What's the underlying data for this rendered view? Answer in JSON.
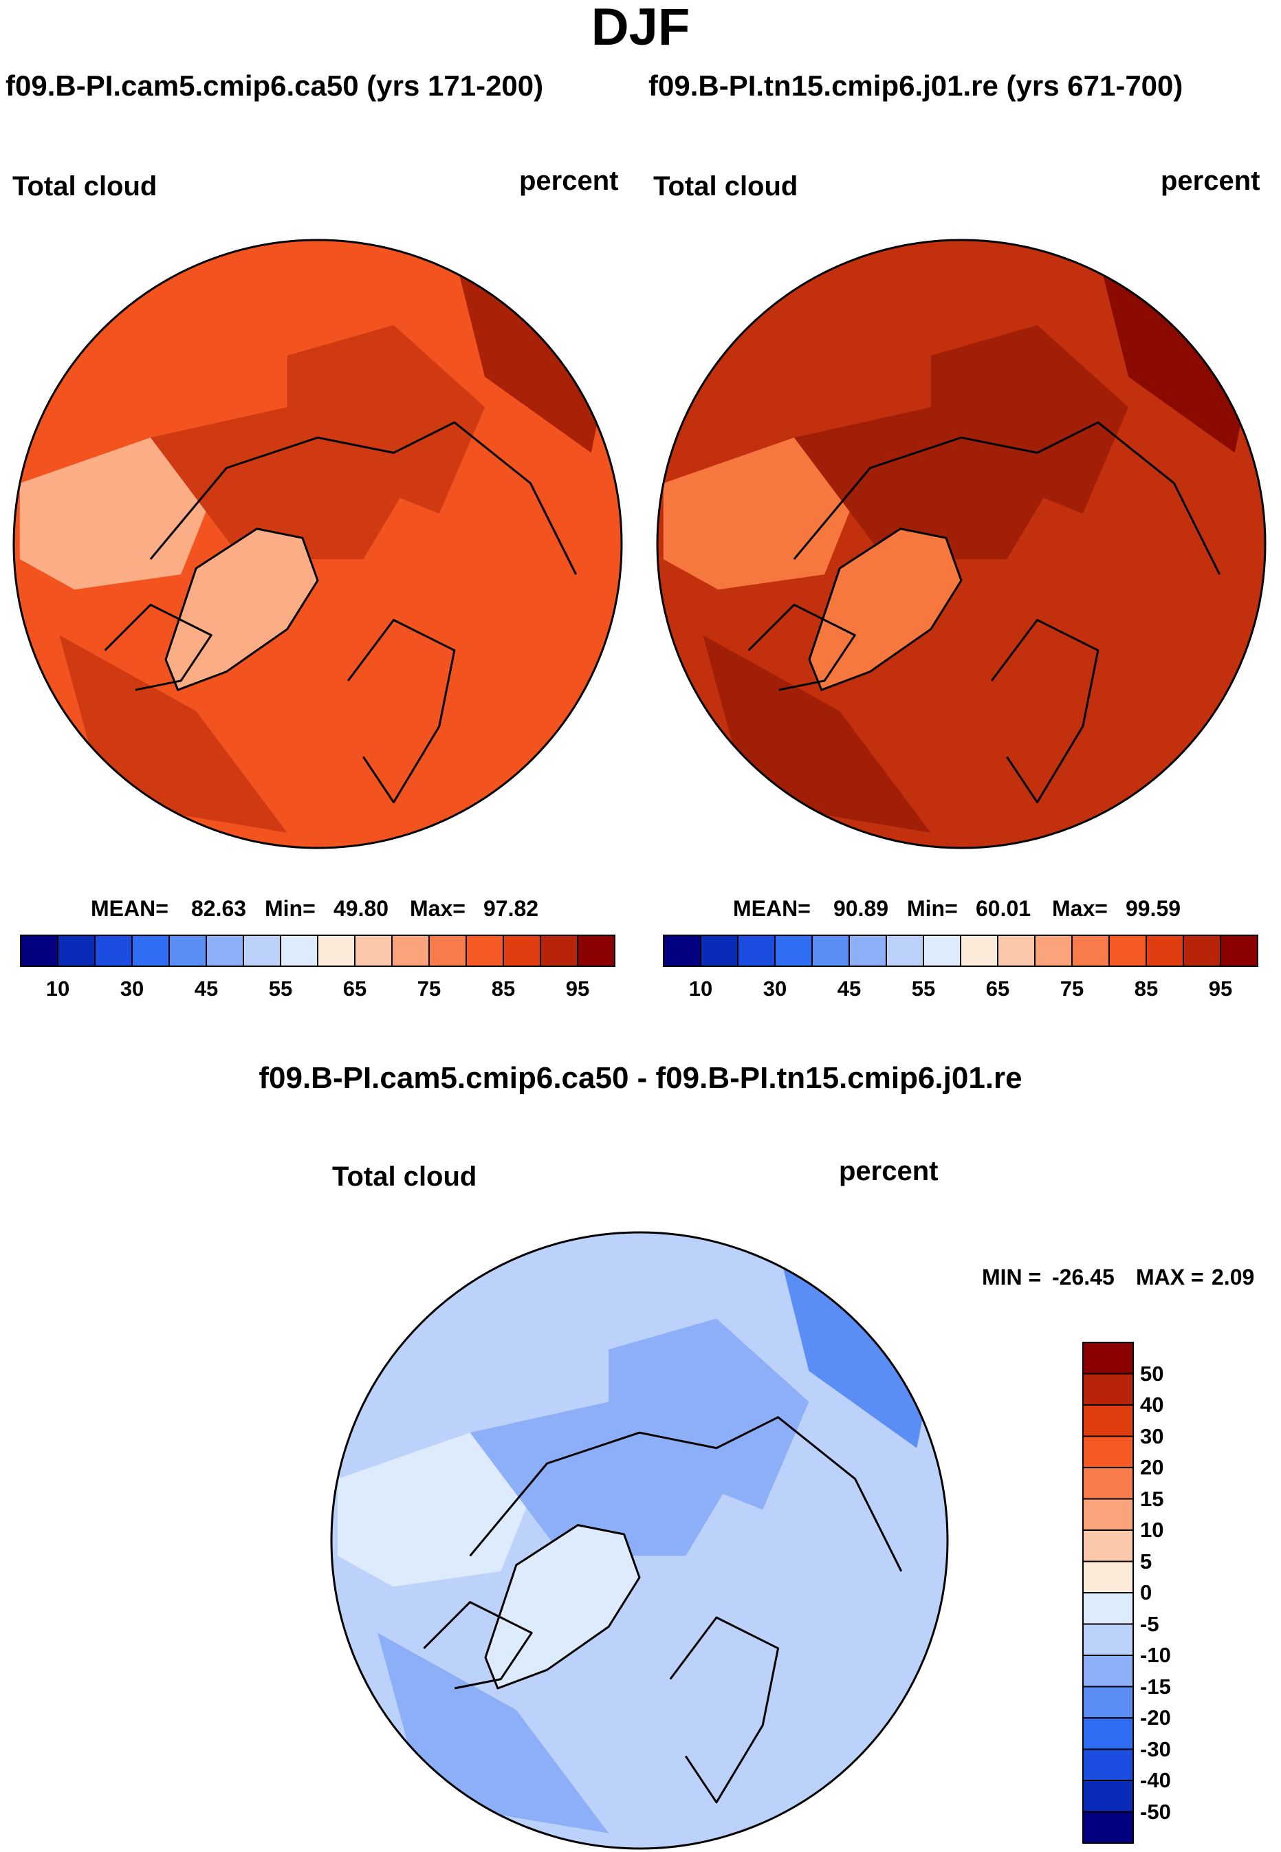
{
  "header": {
    "season": "DJF",
    "left_experiment": "f09.B-PI.cam5.cmip6.ca50 (yrs 171-200)",
    "right_experiment": "f09.B-PI.tn15.cmip6.j01.re (yrs 671-700)",
    "diff_title": "f09.B-PI.cam5.cmip6.ca50 - f09.B-PI.tn15.cmip6.j01.re"
  },
  "chart_data": [
    {
      "type": "heatmap",
      "projection": "north polar stereographic",
      "title": "Total cloud",
      "units": "percent",
      "stats": {
        "mean_label": "MEAN=",
        "mean": "82.63",
        "min_label": "Min=",
        "min": "49.80",
        "max_label": "Max=",
        "max": "97.82"
      },
      "levels": [
        "10",
        "30",
        "45",
        "55",
        "65",
        "75",
        "85",
        "95"
      ],
      "colorbar": [
        "#03007f",
        "#0a2ab8",
        "#1b4ee0",
        "#2f6ef2",
        "#5a8ef5",
        "#8daff7",
        "#bcd2fb",
        "#ddebfc",
        "#fdebd9",
        "#fcc8ab",
        "#fba47c",
        "#f87b4b",
        "#f65a24",
        "#e03d10",
        "#b8240a",
        "#8b0000"
      ],
      "field_colors": {
        "base": "#f2531f",
        "pale": "#fbae86",
        "dark": "#cf3a12",
        "very_dark": "#a92208"
      }
    },
    {
      "type": "heatmap",
      "projection": "north polar stereographic",
      "title": "Total cloud",
      "units": "percent",
      "stats": {
        "mean_label": "MEAN=",
        "mean": "90.89",
        "min_label": "Min=",
        "min": "60.01",
        "max_label": "Max=",
        "max": "99.59"
      },
      "levels": [
        "10",
        "30",
        "45",
        "55",
        "65",
        "75",
        "85",
        "95"
      ],
      "colorbar": [
        "#03007f",
        "#0a2ab8",
        "#1b4ee0",
        "#2f6ef2",
        "#5a8ef5",
        "#8daff7",
        "#bcd2fb",
        "#ddebfc",
        "#fdebd9",
        "#fcc8ab",
        "#fba47c",
        "#f87b4b",
        "#f65a24",
        "#e03d10",
        "#b8240a",
        "#8b0000"
      ],
      "field_colors": {
        "base": "#c3300d",
        "pale": "#f6783f",
        "dark": "#a11f06",
        "very_dark": "#8b0a00"
      }
    },
    {
      "type": "heatmap",
      "projection": "north polar stereographic",
      "title": "Total cloud",
      "units": "percent",
      "stats": {
        "min_label": "MIN =",
        "min": "-26.45",
        "max_label": "MAX =",
        "max": "2.09"
      },
      "levels": [
        "50",
        "40",
        "30",
        "20",
        "15",
        "10",
        "5",
        "0",
        "-5",
        "-10",
        "-15",
        "-20",
        "-30",
        "-40",
        "-50"
      ],
      "colorbar": [
        "#8b0000",
        "#b8240a",
        "#e03d10",
        "#f65a24",
        "#f87b4b",
        "#fba47c",
        "#fcc8ab",
        "#fdebd9",
        "#ddebfc",
        "#bcd2fb",
        "#8daff7",
        "#5a8ef5",
        "#2f6ef2",
        "#1b4ee0",
        "#0a2ab8",
        "#03007f"
      ],
      "field_colors": {
        "base": "#bcd2fb",
        "pale": "#ddebfc",
        "dark": "#8daff7",
        "very_dark": "#5a8ef5"
      }
    }
  ]
}
